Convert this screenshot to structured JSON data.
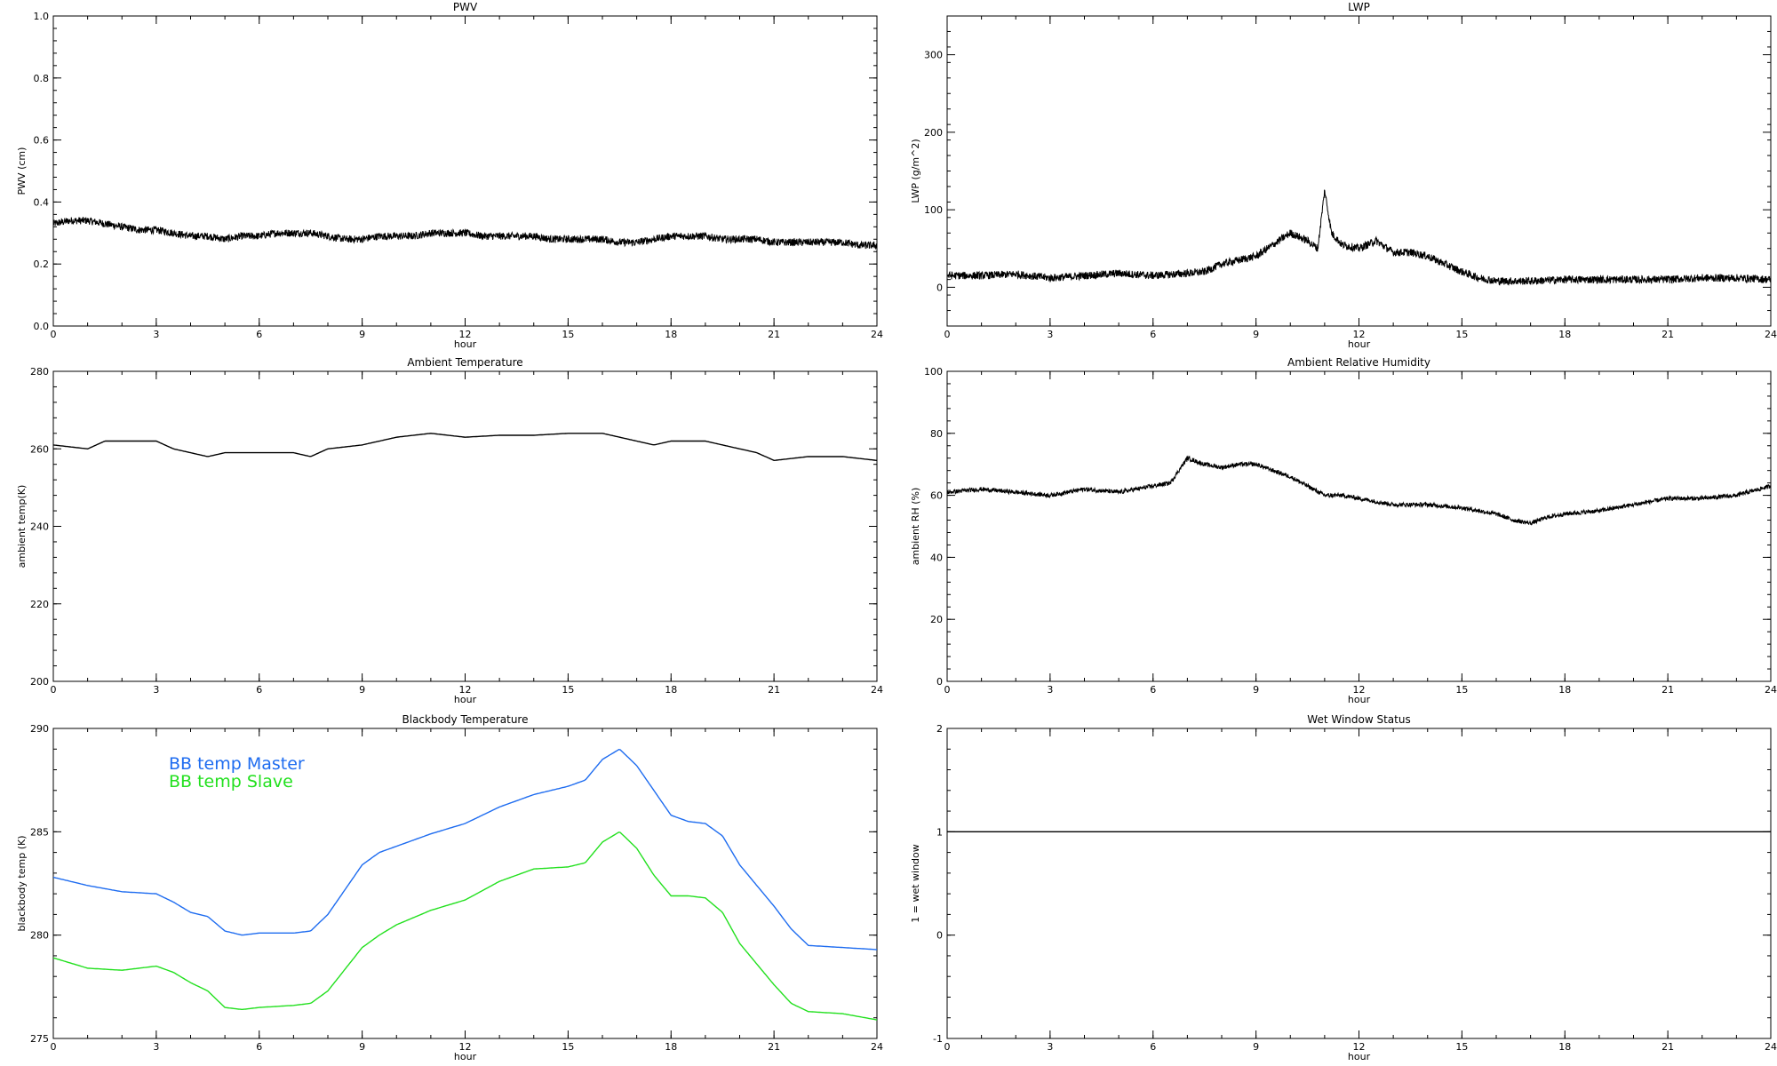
{
  "chart_data": [
    {
      "id": "pwv",
      "type": "line",
      "title": "PWV",
      "xlabel": "hour",
      "ylabel": "PWV (cm)",
      "xlim": [
        0,
        24
      ],
      "ylim": [
        0,
        1
      ],
      "xticks": [
        "0",
        "3",
        "6",
        "9",
        "12",
        "15",
        "18",
        "21",
        "24"
      ],
      "yticks": [
        "0.0",
        "0.2",
        "0.4",
        "0.6",
        "0.8",
        "1.0"
      ],
      "noise": 0.012,
      "series": [
        {
          "color": "#000000",
          "x": [
            0,
            0.5,
            1,
            1.5,
            2,
            2.5,
            3,
            3.5,
            4,
            4.5,
            5,
            5.5,
            6,
            6.5,
            7,
            7.5,
            8,
            8.5,
            9,
            9.5,
            10,
            10.5,
            11,
            11.5,
            12,
            12.5,
            13,
            13.5,
            14,
            14.5,
            15,
            15.5,
            16,
            16.5,
            17,
            17.5,
            18,
            18.5,
            19,
            19.5,
            20,
            20.5,
            21,
            21.5,
            22,
            22.5,
            23,
            23.5,
            24
          ],
          "y": [
            0.33,
            0.34,
            0.34,
            0.33,
            0.32,
            0.31,
            0.31,
            0.3,
            0.29,
            0.29,
            0.28,
            0.29,
            0.29,
            0.3,
            0.3,
            0.3,
            0.29,
            0.28,
            0.28,
            0.29,
            0.29,
            0.29,
            0.3,
            0.3,
            0.3,
            0.29,
            0.29,
            0.29,
            0.29,
            0.28,
            0.28,
            0.28,
            0.28,
            0.27,
            0.27,
            0.28,
            0.29,
            0.29,
            0.29,
            0.28,
            0.28,
            0.28,
            0.27,
            0.27,
            0.27,
            0.27,
            0.27,
            0.26,
            0.26
          ]
        }
      ]
    },
    {
      "id": "lwp",
      "type": "line",
      "title": "LWP",
      "xlabel": "hour",
      "ylabel": "LWP (g/m^2)",
      "xlim": [
        0,
        24
      ],
      "ylim": [
        -50,
        350
      ],
      "xticks": [
        "0",
        "3",
        "6",
        "9",
        "12",
        "15",
        "18",
        "21",
        "24"
      ],
      "yticks": [
        "0",
        "100",
        "200",
        "300"
      ],
      "noise": 5,
      "series": [
        {
          "color": "#000000",
          "x": [
            0,
            1,
            2,
            3,
            4,
            5,
            6,
            7,
            7.5,
            8,
            8.5,
            9,
            9.5,
            10,
            10.5,
            10.8,
            11,
            11.2,
            11.5,
            12,
            12.5,
            13,
            13.5,
            14,
            14.5,
            15,
            15.5,
            16,
            17,
            18,
            19,
            20,
            21,
            22,
            23,
            24
          ],
          "y": [
            15,
            15,
            17,
            12,
            15,
            18,
            15,
            18,
            20,
            30,
            35,
            40,
            55,
            70,
            60,
            50,
            125,
            70,
            55,
            50,
            60,
            45,
            45,
            40,
            30,
            20,
            12,
            8,
            8,
            10,
            10,
            10,
            10,
            12,
            12,
            10
          ]
        }
      ]
    },
    {
      "id": "ambient_temp",
      "type": "line",
      "title": "Ambient Temperature",
      "xlabel": "hour",
      "ylabel": "ambient temp(K)",
      "xlim": [
        0,
        24
      ],
      "ylim": [
        200,
        280
      ],
      "xticks": [
        "0",
        "3",
        "6",
        "9",
        "12",
        "15",
        "18",
        "21",
        "24"
      ],
      "yticks": [
        "200",
        "220",
        "240",
        "260",
        "280"
      ],
      "noise": 0,
      "series": [
        {
          "color": "#000000",
          "x": [
            0,
            1,
            1.5,
            2,
            3,
            3.5,
            4,
            4.5,
            5,
            6,
            7,
            7.5,
            8,
            9,
            10,
            11,
            12,
            13,
            14,
            15,
            16,
            17,
            17.5,
            18,
            19,
            20,
            20.5,
            21,
            22,
            23,
            24
          ],
          "y": [
            261,
            260,
            262,
            262,
            262,
            260,
            259,
            258,
            259,
            259,
            259,
            258,
            260,
            261,
            263,
            264,
            263,
            263.5,
            263.5,
            264,
            264,
            262,
            261,
            262,
            262,
            260,
            259,
            257,
            258,
            258,
            257
          ]
        }
      ]
    },
    {
      "id": "ambient_rh",
      "type": "line",
      "title": "Ambient Relative Humidity",
      "xlabel": "hour",
      "ylabel": "ambient RH (%)",
      "xlim": [
        0,
        24
      ],
      "ylim": [
        0,
        100
      ],
      "xticks": [
        "0",
        "3",
        "6",
        "9",
        "12",
        "15",
        "18",
        "21",
        "24"
      ],
      "yticks": [
        "0",
        "20",
        "40",
        "60",
        "80",
        "100"
      ],
      "noise": 0.7,
      "series": [
        {
          "color": "#000000",
          "x": [
            0,
            1,
            2,
            3,
            4,
            5,
            6,
            6.5,
            7,
            7.5,
            8,
            8.5,
            9,
            9.5,
            10,
            10.5,
            11,
            11.5,
            12,
            13,
            14,
            15,
            16,
            16.5,
            17,
            17.5,
            18,
            19,
            20,
            21,
            22,
            23,
            24
          ],
          "y": [
            61,
            62,
            61,
            60,
            62,
            61,
            63,
            64,
            72,
            70,
            69,
            70,
            70,
            68,
            66,
            63,
            60,
            60,
            59,
            57,
            57,
            56,
            54,
            52,
            51,
            53,
            54,
            55,
            57,
            59,
            59,
            60,
            63
          ]
        }
      ]
    },
    {
      "id": "bb_temp",
      "type": "line",
      "title": "Blackbody Temperature",
      "xlabel": "hour",
      "ylabel": "blackbody temp (K)",
      "xlim": [
        0,
        24
      ],
      "ylim": [
        275,
        290
      ],
      "xticks": [
        "0",
        "3",
        "6",
        "9",
        "12",
        "15",
        "18",
        "21",
        "24"
      ],
      "yticks": [
        "275",
        "280",
        "285",
        "290"
      ],
      "noise": 0,
      "series": [
        {
          "name": "BB temp Master",
          "color": "#1e6cf0",
          "x": [
            0,
            1,
            2,
            3,
            3.5,
            4,
            4.5,
            5,
            5.5,
            6,
            7,
            7.5,
            8,
            9,
            9.5,
            10,
            11,
            12,
            13,
            14,
            15,
            15.5,
            16,
            16.5,
            17,
            17.5,
            18,
            18.5,
            19,
            19.5,
            20,
            21,
            21.5,
            22,
            23,
            24
          ],
          "y": [
            282.8,
            282.4,
            282.1,
            282,
            281.6,
            281.1,
            280.9,
            280.2,
            280,
            280.1,
            280.1,
            280.2,
            281,
            283.4,
            284,
            284.3,
            284.9,
            285.4,
            286.2,
            286.8,
            287.2,
            287.5,
            288.5,
            289,
            288.2,
            287,
            285.8,
            285.5,
            285.4,
            284.8,
            283.4,
            281.4,
            280.3,
            279.5,
            279.4,
            279.3
          ]
        },
        {
          "name": "BB temp Slave",
          "color": "#22e01e",
          "x": [
            0,
            1,
            2,
            3,
            3.5,
            4,
            4.5,
            5,
            5.5,
            6,
            7,
            7.5,
            8,
            9,
            9.5,
            10,
            11,
            12,
            13,
            14,
            15,
            15.5,
            16,
            16.5,
            17,
            17.5,
            18,
            18.5,
            19,
            19.5,
            20,
            21,
            21.5,
            22,
            23,
            24
          ],
          "y": [
            278.9,
            278.4,
            278.3,
            278.5,
            278.2,
            277.7,
            277.3,
            276.5,
            276.4,
            276.5,
            276.6,
            276.7,
            277.3,
            279.4,
            280,
            280.5,
            281.2,
            281.7,
            282.6,
            283.2,
            283.3,
            283.5,
            284.5,
            285,
            284.2,
            282.9,
            281.9,
            281.9,
            281.8,
            281.1,
            279.6,
            277.6,
            276.7,
            276.3,
            276.2,
            275.9
          ]
        }
      ]
    },
    {
      "id": "wet_window",
      "type": "line",
      "title": "Wet Window Status",
      "xlabel": "hour",
      "ylabel": "1 = wet window",
      "xlim": [
        0,
        24
      ],
      "ylim": [
        -1,
        2
      ],
      "xticks": [
        "0",
        "3",
        "6",
        "9",
        "12",
        "15",
        "18",
        "21",
        "24"
      ],
      "yticks": [
        "-1",
        "0",
        "1",
        "2"
      ],
      "noise": 0,
      "series": [
        {
          "color": "#000000",
          "x": [
            0,
            24
          ],
          "y": [
            1,
            1
          ]
        }
      ]
    }
  ]
}
